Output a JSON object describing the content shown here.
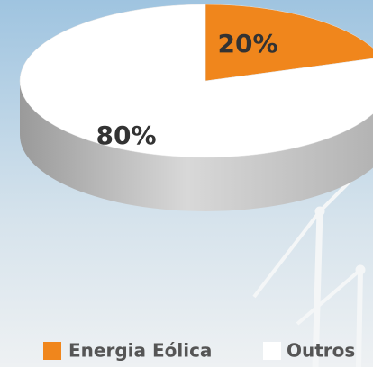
{
  "chart_data": {
    "type": "pie",
    "categories": [
      "Energia Eólica",
      "Outros"
    ],
    "values": [
      20,
      80
    ],
    "value_labels": [
      "20%",
      "80%"
    ],
    "colors": [
      "#f0861c",
      "#ffffff"
    ],
    "legend": "bottom"
  }
}
